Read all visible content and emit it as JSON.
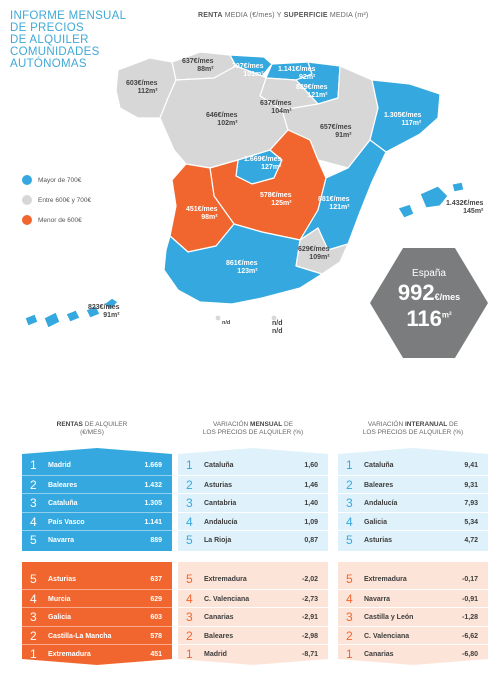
{
  "title_lines": [
    "INFORME MENSUAL",
    "DE PRECIOS",
    "DE ALQUILER",
    "COMUNIDADES",
    "AUTÓNOMAS"
  ],
  "subtitle": {
    "renta": "RENTA",
    "media1": " MEDIA (€/mes) Y ",
    "superficie": "SUPERFICIE",
    "media2": " MEDIA (m²)"
  },
  "colors": {
    "blue": "#35a9df",
    "grey": "#d7d7d7",
    "orange": "#f1662f",
    "panel_blue_light": "#dff1fa",
    "panel_orange_light": "#fde4d8",
    "dark": "#7b7c7d"
  },
  "legend": [
    {
      "label": "Mayor de 700€",
      "color": "#35a9df"
    },
    {
      "label": "Entre 600€ y 700€",
      "color": "#d7d7d7"
    },
    {
      "label": "Menor de 600€",
      "color": "#f1662f"
    }
  ],
  "regions": [
    {
      "id": "galicia",
      "rent": "603€/mes",
      "surface": "112m²",
      "fill": "grey"
    },
    {
      "id": "asturias",
      "rent": "637€/mes",
      "surface": "88m²",
      "fill": "grey"
    },
    {
      "id": "cantabria",
      "rent": "797€/mes",
      "surface": "101m²",
      "fill": "blue"
    },
    {
      "id": "pais-vasco",
      "rent": "1.141€/mes",
      "surface": "92m²",
      "fill": "blue"
    },
    {
      "id": "navarra",
      "rent": "889€/mes",
      "surface": "121m²",
      "fill": "blue"
    },
    {
      "id": "la-rioja",
      "rent": "637€/mes",
      "surface": "104m²",
      "fill": "grey"
    },
    {
      "id": "castilla-leon",
      "rent": "646€/mes",
      "surface": "102m²",
      "fill": "grey"
    },
    {
      "id": "aragon",
      "rent": "657€/mes",
      "surface": "91m²",
      "fill": "grey"
    },
    {
      "id": "cataluna",
      "rent": "1.305€/mes",
      "surface": "117m²",
      "fill": "blue"
    },
    {
      "id": "madrid",
      "rent": "1.669€/mes",
      "surface": "127m²",
      "fill": "blue"
    },
    {
      "id": "castilla-la-mancha",
      "rent": "578€/mes",
      "surface": "125m²",
      "fill": "orange"
    },
    {
      "id": "extremadura",
      "rent": "451€/mes",
      "surface": "98m²",
      "fill": "orange"
    },
    {
      "id": "c-valenciana",
      "rent": "881€/mes",
      "surface": "121m²",
      "fill": "blue"
    },
    {
      "id": "murcia",
      "rent": "629€/mes",
      "surface": "109m²",
      "fill": "grey"
    },
    {
      "id": "andalucia",
      "rent": "861€/mes",
      "surface": "123m²",
      "fill": "blue"
    },
    {
      "id": "baleares",
      "rent": "1.432€/mes",
      "surface": "145m²",
      "fill": "blue"
    },
    {
      "id": "canarias",
      "rent": "823€/mes",
      "surface": "91m²",
      "fill": "blue"
    },
    {
      "id": "ceuta",
      "rent": "n/d",
      "surface": "n/d",
      "fill": "grey"
    },
    {
      "id": "melilla",
      "rent": "n/d",
      "surface": "n/d",
      "fill": "grey"
    }
  ],
  "spain": {
    "name": "España",
    "rent": "992",
    "rent_unit": "€/mes",
    "surface": "116",
    "surface_unit": "m²"
  },
  "columns": [
    {
      "head_bold": "RENTAS",
      "head_rest": " DE ALQUILER",
      "head_line2": "(€/mes)",
      "top": [
        {
          "rank": "1",
          "region": "Madrid",
          "value": "1.669"
        },
        {
          "rank": "2",
          "region": "Baleares",
          "value": "1.432"
        },
        {
          "rank": "3",
          "region": "Cataluña",
          "value": "1.305"
        },
        {
          "rank": "4",
          "region": "País Vasco",
          "value": "1.141"
        },
        {
          "rank": "5",
          "region": "Navarra",
          "value": "889"
        }
      ],
      "bottom": [
        {
          "rank": "5",
          "region": "Asturias",
          "value": "637"
        },
        {
          "rank": "4",
          "region": "Murcia",
          "value": "629"
        },
        {
          "rank": "3",
          "region": "Galicia",
          "value": "603"
        },
        {
          "rank": "2",
          "region": "Castilla-La Mancha",
          "value": "578"
        },
        {
          "rank": "1",
          "region": "Extremadura",
          "value": "451"
        }
      ]
    },
    {
      "head_pre": "VARIACIÓN ",
      "head_bold": "MENSUAL",
      "head_rest": " DE",
      "head_line2": "LOS PRECIOS DE ALQUILER (%)",
      "top": [
        {
          "rank": "1",
          "region": "Cataluña",
          "value": "1,60"
        },
        {
          "rank": "2",
          "region": "Asturias",
          "value": "1,46"
        },
        {
          "rank": "3",
          "region": "Cantabria",
          "value": "1,40"
        },
        {
          "rank": "4",
          "region": "Andalucía",
          "value": "1,09"
        },
        {
          "rank": "5",
          "region": "La Rioja",
          "value": "0,87"
        }
      ],
      "bottom": [
        {
          "rank": "5",
          "region": "Extremadura",
          "value": "-2,02"
        },
        {
          "rank": "4",
          "region": "C. Valenciana",
          "value": "-2,73"
        },
        {
          "rank": "3",
          "region": "Canarias",
          "value": "-2,91"
        },
        {
          "rank": "2",
          "region": "Baleares",
          "value": "-2,98"
        },
        {
          "rank": "1",
          "region": "Madrid",
          "value": "-8,71"
        }
      ]
    },
    {
      "head_pre": "VARIACIÓN ",
      "head_bold": "INTERANUAL",
      "head_rest": " DE",
      "head_line2": "LOS PRECIOS DE ALQUILER (%)",
      "top": [
        {
          "rank": "1",
          "region": "Cataluña",
          "value": "9,41"
        },
        {
          "rank": "2",
          "region": "Baleares",
          "value": "9,31"
        },
        {
          "rank": "3",
          "region": "Andalucía",
          "value": "7,93"
        },
        {
          "rank": "4",
          "region": "Galicia",
          "value": "5,34"
        },
        {
          "rank": "5",
          "region": "Asturias",
          "value": "4,72"
        }
      ],
      "bottom": [
        {
          "rank": "5",
          "region": "Extremadura",
          "value": "-0,17"
        },
        {
          "rank": "4",
          "region": "Navarra",
          "value": "-0,91"
        },
        {
          "rank": "3",
          "region": "Castilla y León",
          "value": "-1,28"
        },
        {
          "rank": "2",
          "region": "C. Valenciana",
          "value": "-6,62"
        },
        {
          "rank": "1",
          "region": "Canarias",
          "value": "-6,80"
        }
      ]
    }
  ]
}
